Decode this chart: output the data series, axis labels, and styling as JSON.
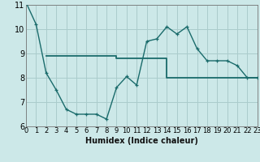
{
  "title": "",
  "xlabel": "Humidex (Indice chaleur)",
  "background_color": "#cce8e8",
  "grid_color": "#aacccc",
  "line_color": "#1a6b6b",
  "xmin": 0,
  "xmax": 23,
  "ymin": 6,
  "ymax": 11,
  "curve1_x": [
    0,
    1,
    2,
    3,
    4,
    5,
    6,
    7,
    8,
    9,
    10,
    11,
    12,
    13,
    14,
    15,
    16,
    17,
    18,
    19,
    20,
    21,
    22,
    23
  ],
  "curve1_y": [
    11.1,
    10.2,
    8.2,
    7.5,
    6.7,
    6.5,
    6.5,
    6.5,
    6.3,
    7.6,
    8.05,
    7.7,
    9.5,
    9.6,
    10.1,
    9.8,
    10.1,
    9.2,
    8.7,
    8.7,
    8.7,
    8.5,
    8.0,
    8.0
  ],
  "curve2_x": [
    2,
    9,
    9,
    14,
    14,
    23
  ],
  "curve2_y": [
    8.9,
    8.9,
    8.8,
    8.8,
    8.0,
    8.0
  ],
  "ytick_values": [
    6,
    7,
    8,
    9,
    10,
    11
  ],
  "ytick_labels": [
    "6",
    "7",
    "8",
    "9",
    "10",
    "11"
  ],
  "xtick_values": [
    0,
    1,
    2,
    3,
    4,
    5,
    6,
    7,
    8,
    9,
    10,
    11,
    12,
    13,
    14,
    15,
    16,
    17,
    18,
    19,
    20,
    21,
    22,
    23
  ],
  "xtick_labels": [
    "0",
    "1",
    "2",
    "3",
    "4",
    "5",
    "6",
    "7",
    "8",
    "9",
    "10",
    "11",
    "12",
    "13",
    "14",
    "15",
    "16",
    "17",
    "18",
    "19",
    "20",
    "21",
    "22",
    "23"
  ],
  "xlabel_fontsize": 7,
  "tick_fontsize": 6,
  "linewidth": 1.0,
  "markersize": 3.5,
  "markeredgewidth": 0.9
}
